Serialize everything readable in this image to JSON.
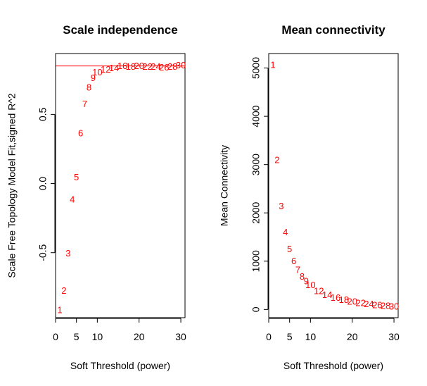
{
  "chart_data": [
    {
      "type": "scatter",
      "title": "Scale independence",
      "xlabel": "Soft Threshold (power)",
      "ylabel": "Scale Free Topology Model Fit,signed R^2",
      "xlim": [
        0,
        31
      ],
      "ylim": [
        -0.97,
        0.94
      ],
      "xticks": [
        0,
        5,
        10,
        20,
        30
      ],
      "yticks": [
        -0.5,
        0.0,
        0.5
      ],
      "ytick_labels": [
        "-0.5",
        "0.0",
        "0.5"
      ],
      "abline_h": 0.85,
      "point_color": "#ff0000",
      "points": [
        {
          "x": 1,
          "y": -0.92,
          "label": "1"
        },
        {
          "x": 2,
          "y": -0.78,
          "label": "2"
        },
        {
          "x": 3,
          "y": -0.51,
          "label": "3"
        },
        {
          "x": 4,
          "y": -0.12,
          "label": "4"
        },
        {
          "x": 5,
          "y": 0.04,
          "label": "5"
        },
        {
          "x": 6,
          "y": 0.36,
          "label": "6"
        },
        {
          "x": 7,
          "y": 0.57,
          "label": "7"
        },
        {
          "x": 8,
          "y": 0.69,
          "label": "8"
        },
        {
          "x": 9,
          "y": 0.76,
          "label": "9"
        },
        {
          "x": 10,
          "y": 0.8,
          "label": "10"
        },
        {
          "x": 12,
          "y": 0.82,
          "label": "12"
        },
        {
          "x": 14,
          "y": 0.83,
          "label": "14"
        },
        {
          "x": 16,
          "y": 0.845,
          "label": "16"
        },
        {
          "x": 18,
          "y": 0.84,
          "label": "18"
        },
        {
          "x": 20,
          "y": 0.845,
          "label": "20"
        },
        {
          "x": 22,
          "y": 0.84,
          "label": "22"
        },
        {
          "x": 24,
          "y": 0.84,
          "label": "24"
        },
        {
          "x": 26,
          "y": 0.835,
          "label": "26"
        },
        {
          "x": 28,
          "y": 0.84,
          "label": "28"
        },
        {
          "x": 30,
          "y": 0.85,
          "label": "30"
        }
      ]
    },
    {
      "type": "scatter",
      "title": "Mean connectivity",
      "xlabel": "Soft Threshold (power)",
      "ylabel": "Mean Connectivity",
      "xlim": [
        0,
        31
      ],
      "ylim": [
        -170,
        5300
      ],
      "xticks": [
        0,
        5,
        10,
        20,
        30
      ],
      "yticks": [
        0,
        1000,
        2000,
        3000,
        4000,
        5000
      ],
      "ytick_labels": [
        "0",
        "1000",
        "2000",
        "3000",
        "4000",
        "5000"
      ],
      "point_color": "#ff0000",
      "points": [
        {
          "x": 1,
          "y": 5050,
          "label": "1"
        },
        {
          "x": 2,
          "y": 3080,
          "label": "2"
        },
        {
          "x": 3,
          "y": 2130,
          "label": "3"
        },
        {
          "x": 4,
          "y": 1590,
          "label": "4"
        },
        {
          "x": 5,
          "y": 1240,
          "label": "5"
        },
        {
          "x": 6,
          "y": 990,
          "label": "6"
        },
        {
          "x": 7,
          "y": 810,
          "label": "7"
        },
        {
          "x": 8,
          "y": 670,
          "label": "8"
        },
        {
          "x": 9,
          "y": 570,
          "label": "9"
        },
        {
          "x": 10,
          "y": 490,
          "label": "10"
        },
        {
          "x": 12,
          "y": 370,
          "label": "12"
        },
        {
          "x": 14,
          "y": 290,
          "label": "14"
        },
        {
          "x": 16,
          "y": 230,
          "label": "16"
        },
        {
          "x": 18,
          "y": 185,
          "label": "18"
        },
        {
          "x": 20,
          "y": 150,
          "label": "20"
        },
        {
          "x": 22,
          "y": 120,
          "label": "22"
        },
        {
          "x": 24,
          "y": 100,
          "label": "24"
        },
        {
          "x": 26,
          "y": 80,
          "label": "26"
        },
        {
          "x": 28,
          "y": 65,
          "label": "28"
        },
        {
          "x": 30,
          "y": 50,
          "label": "30"
        }
      ]
    }
  ]
}
